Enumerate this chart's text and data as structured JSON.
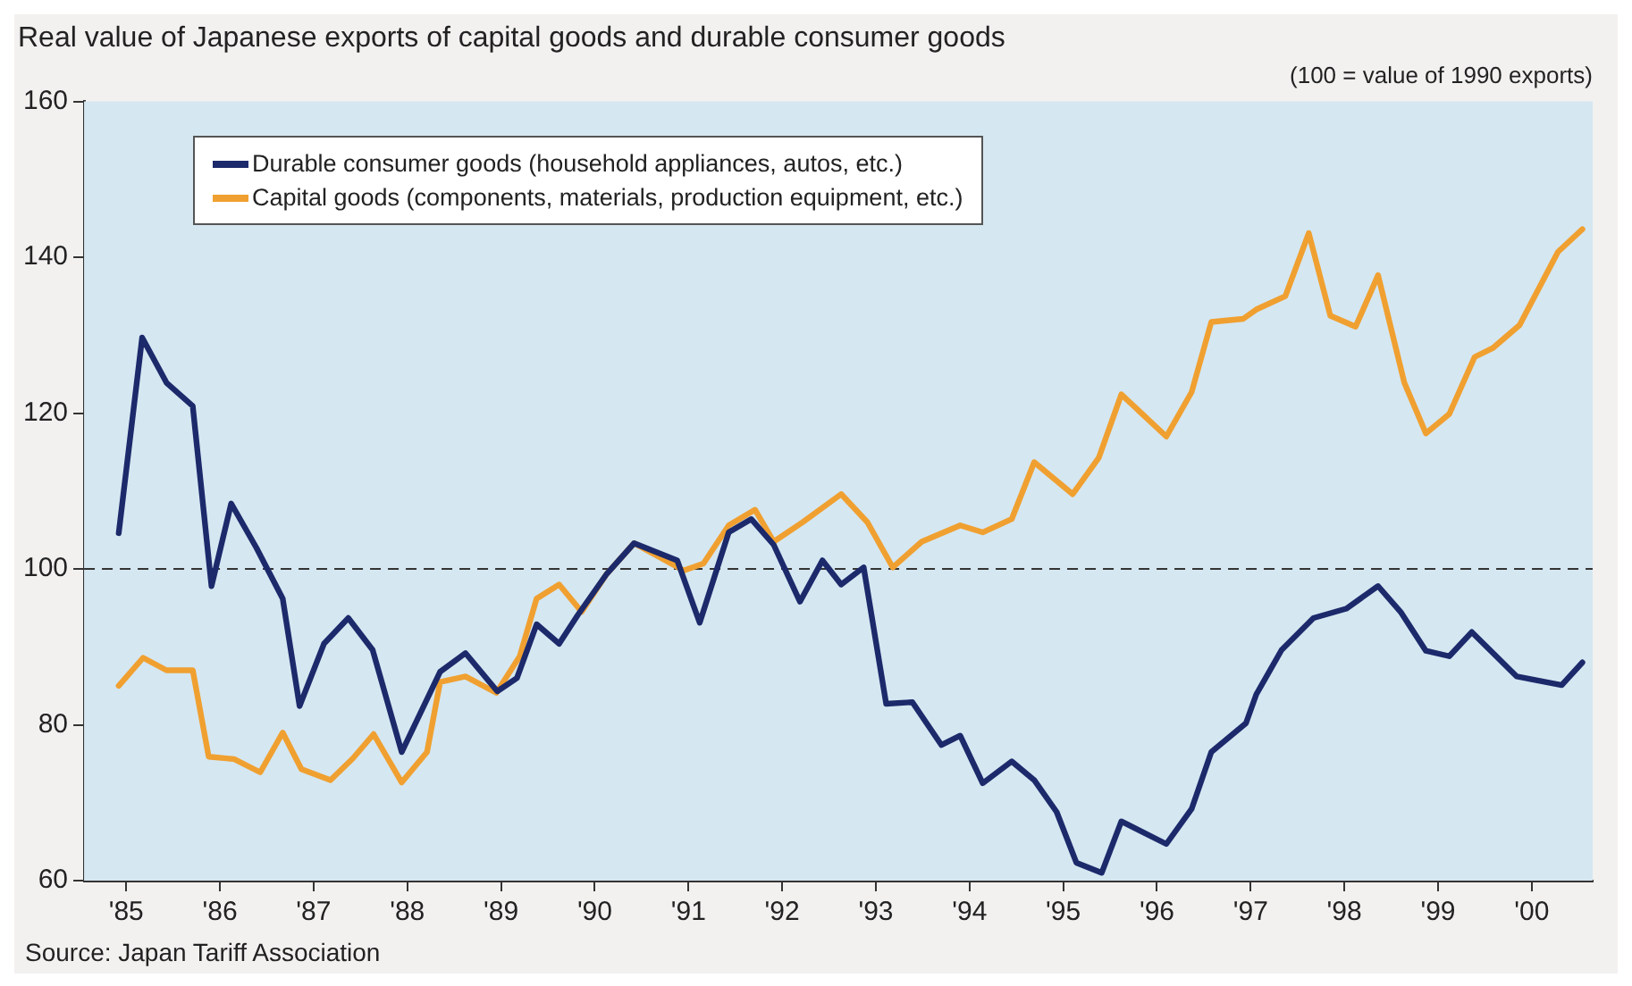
{
  "chart_data": {
    "type": "line",
    "title": "Real value of Japanese exports of capital goods and durable consumer goods",
    "subtitle": "(100 = value of 1990 exports)",
    "annotations": [
      "Source: Japan Tariff Association"
    ],
    "xlim": [
      1984.55,
      2000.65
    ],
    "xticks": [
      {
        "value": 1985,
        "label": "'85"
      },
      {
        "value": 1986,
        "label": "'86"
      },
      {
        "value": 1987,
        "label": "'87"
      },
      {
        "value": 1988,
        "label": "'88"
      },
      {
        "value": 1989,
        "label": "'89"
      },
      {
        "value": 1990,
        "label": "'90"
      },
      {
        "value": 1991,
        "label": "'91"
      },
      {
        "value": 1992,
        "label": "'92"
      },
      {
        "value": 1993,
        "label": "'93"
      },
      {
        "value": 1994,
        "label": "'94"
      },
      {
        "value": 1995,
        "label": "'95"
      },
      {
        "value": 1996,
        "label": "'96"
      },
      {
        "value": 1997,
        "label": "'97"
      },
      {
        "value": 1998,
        "label": "'98"
      },
      {
        "value": 1999,
        "label": "'99"
      },
      {
        "value": 2000,
        "label": "'00"
      }
    ],
    "ylim": [
      60,
      160
    ],
    "yticks": [
      60,
      80,
      100,
      120,
      140,
      160
    ],
    "grid": false,
    "legend": "top left",
    "marker": "none",
    "line_style": "solid",
    "ref_lines": [
      {
        "axis": "y",
        "value": 100,
        "color": "#333333",
        "line_style": "dashed"
      }
    ],
    "series": [
      {
        "name": "Durable consumer goods (household appliances, autos, etc.)",
        "color": "#1c2a6b",
        "x": [
          1984.92,
          1985.17,
          1985.43,
          1985.71,
          1985.91,
          1986.12,
          1986.39,
          1986.67,
          1986.85,
          1987.11,
          1987.37,
          1987.63,
          1987.94,
          1988.35,
          1988.62,
          1988.96,
          1989.17,
          1989.38,
          1989.62,
          1989.82,
          1990.13,
          1990.42,
          1990.88,
          1991.12,
          1991.43,
          1991.67,
          1991.91,
          1992.19,
          1992.43,
          1992.63,
          1992.87,
          1993.11,
          1993.39,
          1993.7,
          1993.9,
          1994.14,
          1994.45,
          1994.69,
          1994.93,
          1995.14,
          1995.41,
          1995.62,
          1996.1,
          1996.37,
          1996.58,
          1996.95,
          1997.06,
          1997.33,
          1997.67,
          1998.02,
          1998.36,
          1998.6,
          1998.87,
          1999.12,
          1999.36,
          1999.84,
          2000.32,
          2000.54
        ],
        "values": [
          104.6,
          129.7,
          123.9,
          120.9,
          97.8,
          108.4,
          102.7,
          96.2,
          82.4,
          90.4,
          93.7,
          89.6,
          76.5,
          86.8,
          89.2,
          84.3,
          86,
          92.9,
          90.4,
          94.1,
          99.4,
          103.3,
          101.1,
          93.1,
          104.7,
          106.4,
          103.1,
          95.8,
          101.1,
          98,
          100.2,
          82.7,
          82.9,
          77.4,
          78.6,
          72.5,
          75.3,
          72.9,
          68.8,
          62.3,
          61,
          67.6,
          64.7,
          69.2,
          76.5,
          80.2,
          83.9,
          89.6,
          93.7,
          94.9,
          97.8,
          94.5,
          89.5,
          88.8,
          91.9,
          86.2,
          85.1,
          88
        ]
      },
      {
        "name": "Capital goods (components, materials, production equipment, etc.)",
        "color": "#f0a030",
        "x": [
          1984.92,
          1985.18,
          1985.43,
          1985.71,
          1985.88,
          1986.15,
          1986.43,
          1986.67,
          1986.87,
          1987.18,
          1987.42,
          1987.64,
          1987.94,
          1988.21,
          1988.35,
          1988.62,
          1988.95,
          1989.2,
          1989.38,
          1989.62,
          1989.86,
          1990.13,
          1990.42,
          1990.95,
          1991.16,
          1991.43,
          1991.71,
          1991.91,
          1992.22,
          1992.63,
          1992.91,
          1993.18,
          1993.49,
          1993.9,
          1994.14,
          1994.45,
          1994.69,
          1995.1,
          1995.38,
          1995.62,
          1996.1,
          1996.37,
          1996.58,
          1996.92,
          1997.06,
          1997.37,
          1997.62,
          1997.85,
          1998.12,
          1998.36,
          1998.64,
          1998.87,
          1999.12,
          1999.39,
          1999.59,
          1999.87,
          2000.28,
          2000.54
        ],
        "values": [
          85,
          88.6,
          87,
          87,
          75.9,
          75.6,
          73.9,
          79,
          74.3,
          72.9,
          75.7,
          78.8,
          72.6,
          76.5,
          85.5,
          86.2,
          84.1,
          88.8,
          96.2,
          98,
          94.5,
          99.4,
          103.3,
          99.8,
          100.7,
          105.6,
          107.6,
          103.5,
          106,
          109.6,
          106,
          100.2,
          103.5,
          105.6,
          104.7,
          106.4,
          113.7,
          109.6,
          114.3,
          122.4,
          117,
          122.7,
          131.7,
          132.1,
          133.3,
          135,
          143.1,
          132.5,
          131.1,
          137.7,
          123.9,
          117.4,
          119.9,
          127.2,
          128.4,
          131.3,
          140.7,
          143.6
        ]
      }
    ]
  }
}
